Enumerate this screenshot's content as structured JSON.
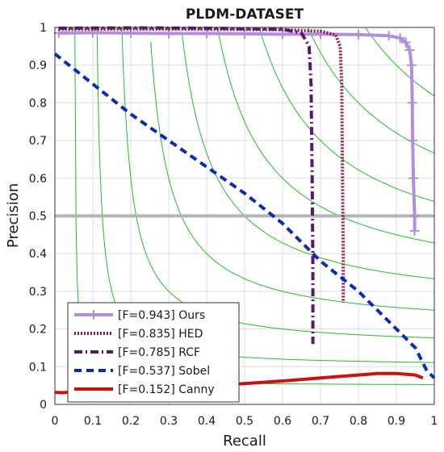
{
  "chart_data": {
    "type": "line",
    "title": "PLDM-DATASET",
    "xlabel": "Recall",
    "ylabel": "Precision",
    "xlim": [
      0,
      1
    ],
    "ylim": [
      0,
      1
    ],
    "xticks": [
      "0",
      "0.1",
      "0.2",
      "0.3",
      "0.4",
      "0.5",
      "0.6",
      "0.7",
      "0.8",
      "0.9",
      "1"
    ],
    "yticks": [
      "0",
      "0.1",
      "0.2",
      "0.3",
      "0.4",
      "0.5",
      "0.6",
      "0.7",
      "0.8",
      "0.9",
      "1"
    ],
    "grid": true,
    "legend_position": "bottom-left",
    "reference_line": {
      "y": 0.5,
      "color": "#b4b4b4"
    },
    "iso_f_curves": {
      "values": [
        0.1,
        0.2,
        0.3,
        0.4,
        0.5,
        0.6,
        0.7,
        0.8,
        0.9
      ],
      "color": "#22bb22"
    },
    "series": [
      {
        "name": "[F=0.943] Ours",
        "color": "#b28fdd",
        "style": "solid-plus",
        "x": [
          0.01,
          0.1,
          0.2,
          0.3,
          0.4,
          0.5,
          0.6,
          0.7,
          0.8,
          0.88,
          0.91,
          0.925,
          0.935,
          0.94,
          0.942,
          0.943,
          0.945,
          0.948,
          0.948
        ],
        "y": [
          0.985,
          0.986,
          0.985,
          0.984,
          0.984,
          0.983,
          0.982,
          0.982,
          0.981,
          0.978,
          0.972,
          0.96,
          0.94,
          0.9,
          0.8,
          0.7,
          0.6,
          0.5,
          0.46
        ]
      },
      {
        "name": "[F=0.835] HED",
        "color": "#8b1a4a",
        "style": "dotted",
        "x": [
          0.01,
          0.2,
          0.4,
          0.6,
          0.7,
          0.74,
          0.752,
          0.756,
          0.758,
          0.76,
          0.76
        ],
        "y": [
          0.995,
          0.996,
          0.995,
          0.994,
          0.99,
          0.98,
          0.95,
          0.85,
          0.6,
          0.4,
          0.27
        ]
      },
      {
        "name": "[F=0.785] RCF",
        "color": "#5a1770",
        "style": "dashdot",
        "x": [
          0.01,
          0.2,
          0.4,
          0.6,
          0.65,
          0.67,
          0.675,
          0.678,
          0.68,
          0.68
        ],
        "y": [
          0.998,
          0.999,
          0.998,
          0.995,
          0.985,
          0.95,
          0.85,
          0.6,
          0.35,
          0.16
        ]
      },
      {
        "name": "[F=0.537] Sobel",
        "color": "#0b2bb5",
        "style": "dashed",
        "x": [
          0.0,
          0.05,
          0.1,
          0.2,
          0.3,
          0.4,
          0.5,
          0.6,
          0.7,
          0.8,
          0.9,
          0.95,
          0.98,
          1.0
        ],
        "y": [
          0.93,
          0.89,
          0.85,
          0.77,
          0.7,
          0.63,
          0.56,
          0.48,
          0.38,
          0.3,
          0.2,
          0.15,
          0.09,
          0.07
        ]
      },
      {
        "name": "[F=0.152] Canny",
        "color": "#cc1111",
        "style": "solid",
        "x": [
          0.0,
          0.02,
          0.05,
          0.1,
          0.2,
          0.3,
          0.4,
          0.5,
          0.6,
          0.7,
          0.8,
          0.85,
          0.9,
          0.95,
          0.97
        ],
        "y": [
          0.032,
          0.031,
          0.033,
          0.035,
          0.04,
          0.045,
          0.05,
          0.055,
          0.062,
          0.07,
          0.078,
          0.082,
          0.082,
          0.078,
          0.07
        ]
      }
    ]
  }
}
